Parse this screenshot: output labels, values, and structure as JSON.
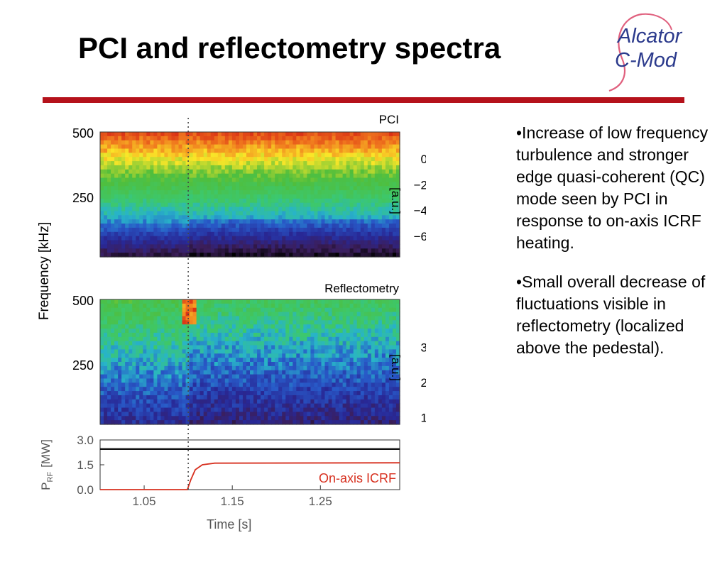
{
  "slide": {
    "title": "PCI and reflectometry spectra",
    "logo_text": [
      "Alcator",
      "C-Mod"
    ],
    "logo_color": "#2b3a8c",
    "accent_color": "#b5121b"
  },
  "bullets": [
    "•Increase of low frequency turbulence and stronger edge quasi-coherent (QC) mode seen by PCI in response to on-axis ICRF heating.",
    "•Small overall decrease of fluctuations visible in reflectometry (localized above the pedestal)."
  ],
  "chart_data": [
    {
      "type": "heatmap",
      "title": "PCI",
      "ylabel": "Frequency [kHz]",
      "y_ticks": [
        "500",
        "250"
      ],
      "colorbar_label": "[a.u.]",
      "colorbar_ticks": [
        "0",
        "−2",
        "−4",
        "−6"
      ],
      "colorbar_range": [
        -7.5,
        1
      ],
      "marker_time_s": 1.1
    },
    {
      "type": "heatmap",
      "title": "Reflectometry",
      "y_ticks": [
        "500",
        "250"
      ],
      "colorbar_label": "[a.u.]",
      "colorbar_ticks": [
        "3",
        "2",
        "1"
      ],
      "colorbar_range": [
        0.85,
        4
      ],
      "marker_time_s": 1.1
    },
    {
      "type": "line",
      "xlabel": "Time [s]",
      "ylabel_main": "P",
      "ylabel_sub": "RF",
      "ylabel_unit": "[MW]",
      "x_ticks": [
        "1.05",
        "1.15",
        "1.25"
      ],
      "y_ticks": [
        "3.0",
        "1.5",
        "0.0"
      ],
      "xlim": [
        1.0,
        1.34
      ],
      "ylim": [
        0,
        3.0
      ],
      "annotation": "On-axis ICRF",
      "series": [
        {
          "color": "#111111",
          "values": [
            [
              1.0,
              2.45
            ],
            [
              1.34,
              2.45
            ]
          ]
        },
        {
          "name": "On-axis ICRF",
          "color": "#d7301f",
          "values": [
            [
              1.0,
              0.0
            ],
            [
              1.099,
              0.0
            ],
            [
              1.103,
              0.6
            ],
            [
              1.108,
              1.2
            ],
            [
              1.116,
              1.5
            ],
            [
              1.13,
              1.6
            ],
            [
              1.34,
              1.62
            ]
          ]
        }
      ]
    }
  ]
}
